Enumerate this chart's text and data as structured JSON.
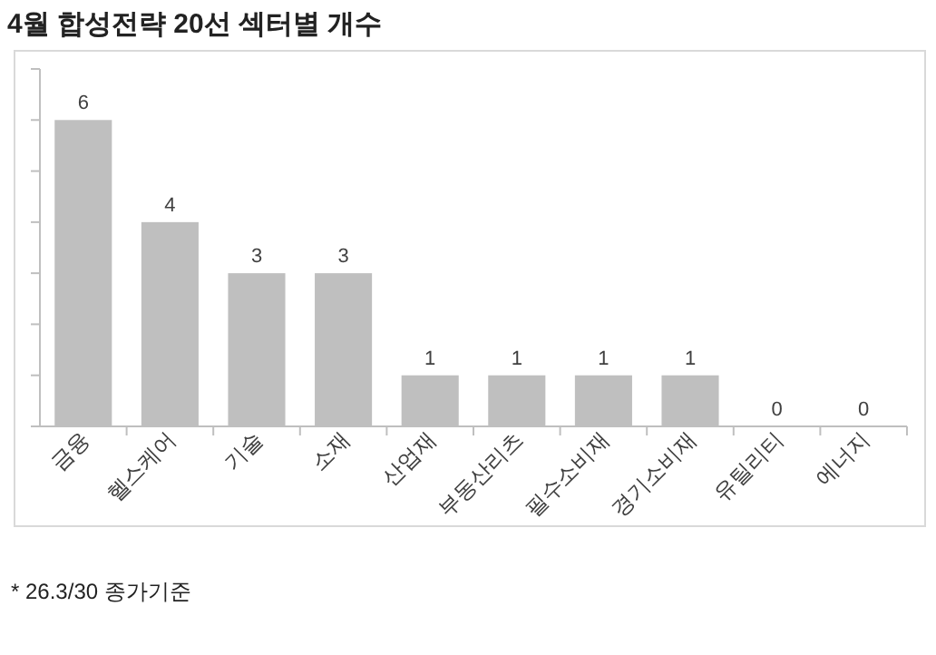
{
  "chart_data": {
    "type": "bar",
    "title": "4월 합성전략 20선 섹터별 개수",
    "categories": [
      "금융",
      "헬스케어",
      "기술",
      "소재",
      "산업재",
      "부동산리츠",
      "필수소비재",
      "경기소비재",
      "유틸리티",
      "에너지"
    ],
    "values": [
      6,
      4,
      3,
      3,
      1,
      1,
      1,
      1,
      0,
      0
    ],
    "color": "#bfbfbf",
    "data_labels": true,
    "ylim": [
      0,
      7
    ],
    "yticks": [
      {
        "value": 0,
        "label": null
      },
      {
        "value": 1,
        "label": null
      },
      {
        "value": 2,
        "label": null
      },
      {
        "value": 3,
        "label": null
      },
      {
        "value": 4,
        "label": null
      },
      {
        "value": 5,
        "label": null
      },
      {
        "value": 6,
        "label": null
      },
      {
        "value": 7,
        "label": null
      }
    ],
    "tick_labels": "x",
    "grid": false,
    "annotations": [
      "* 26.3/30 종가기준"
    ]
  }
}
